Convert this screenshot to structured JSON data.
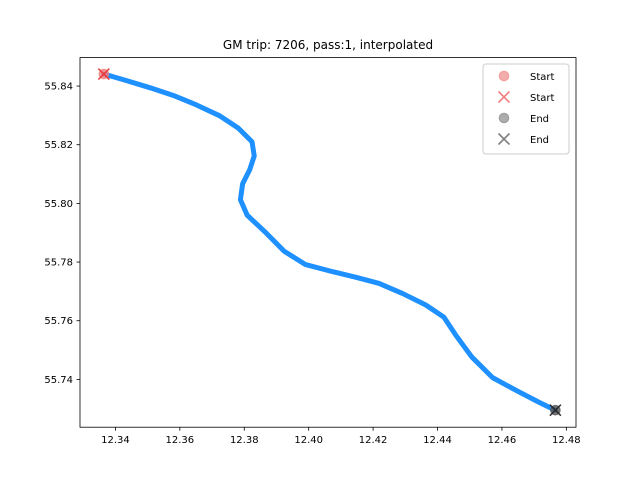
{
  "chart_data": {
    "type": "line",
    "title": "GM trip: 7206, pass:1, interpolated",
    "xlabel": "",
    "ylabel": "",
    "xlim": [
      12.329,
      12.483
    ],
    "ylim": [
      55.7237,
      55.8497
    ],
    "xticks": [
      12.34,
      12.36,
      12.38,
      12.4,
      12.42,
      12.44,
      12.46,
      12.48
    ],
    "xtick_labels": [
      "12.34",
      "12.36",
      "12.38",
      "12.40",
      "12.42",
      "12.44",
      "12.46",
      "12.48"
    ],
    "yticks": [
      55.74,
      55.76,
      55.78,
      55.8,
      55.82,
      55.84
    ],
    "ytick_labels": [
      "55.74",
      "55.76",
      "55.78",
      "55.80",
      "55.82",
      "55.84"
    ],
    "grid": false,
    "legend_placement": "top-right",
    "series": [
      {
        "color": "#1e90ff",
        "x": [
          12.3364,
          12.3436,
          12.3508,
          12.358,
          12.3651,
          12.3723,
          12.3781,
          12.3824,
          12.3831,
          12.3817,
          12.3795,
          12.3788,
          12.3809,
          12.3867,
          12.3924,
          12.3989,
          12.4075,
          12.4147,
          12.4219,
          12.4291,
          12.4363,
          12.442,
          12.4456,
          12.4506,
          12.4571,
          12.4643,
          12.4715,
          12.4766
        ],
        "y": [
          55.8441,
          55.8418,
          55.8394,
          55.8368,
          55.8336,
          55.8299,
          55.8257,
          55.821,
          55.8162,
          55.8115,
          55.8067,
          55.8013,
          55.796,
          55.79,
          55.7837,
          55.7792,
          55.7767,
          55.7748,
          55.7727,
          55.7693,
          55.7654,
          55.7612,
          55.7552,
          55.7477,
          55.7406,
          55.7363,
          55.7322,
          55.7295
        ]
      }
    ],
    "markers": [
      {
        "label": "Start",
        "shape": "circle",
        "color": "#f08080",
        "x": 12.3364,
        "y": 55.8441
      },
      {
        "label": "Start",
        "shape": "x",
        "color": "#f03232",
        "x": 12.3364,
        "y": 55.8441
      },
      {
        "label": "End",
        "shape": "circle",
        "color": "#555555",
        "x": 12.4766,
        "y": 55.7295
      },
      {
        "label": "End",
        "shape": "x",
        "color": "#222222",
        "x": 12.4766,
        "y": 55.7295
      }
    ],
    "legend": [
      {
        "label": "Start",
        "shape": "circle",
        "color": "#f08080"
      },
      {
        "label": "Start",
        "shape": "x",
        "color": "#f08080"
      },
      {
        "label": "End",
        "shape": "circle",
        "color": "#808080"
      },
      {
        "label": "End",
        "shape": "x",
        "color": "#808080"
      }
    ]
  }
}
